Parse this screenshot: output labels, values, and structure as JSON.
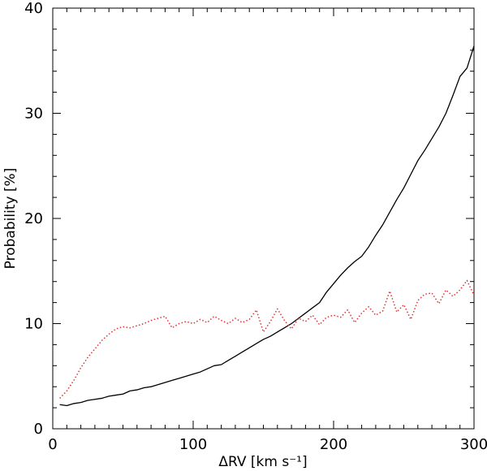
{
  "chart_data": {
    "type": "line",
    "title": "",
    "xlabel": "ΔRV [km s⁻¹]",
    "ylabel": "Probability [%]",
    "xlim": [
      0,
      300
    ],
    "ylim": [
      0,
      40
    ],
    "xticks": [
      "0",
      "100",
      "200",
      "300"
    ],
    "yticks": [
      "0",
      "10",
      "20",
      "30",
      "40"
    ],
    "grid": false,
    "legend": "none",
    "series": [
      {
        "color": "#000000",
        "style": "solid",
        "x": [
          5,
          10,
          15,
          20,
          25,
          30,
          35,
          40,
          45,
          50,
          55,
          60,
          65,
          70,
          75,
          80,
          85,
          90,
          95,
          100,
          105,
          110,
          115,
          120,
          125,
          130,
          135,
          140,
          145,
          150,
          155,
          160,
          165,
          170,
          175,
          180,
          185,
          190,
          195,
          200,
          205,
          210,
          215,
          220,
          225,
          230,
          235,
          240,
          245,
          250,
          255,
          260,
          265,
          270,
          275,
          280,
          285,
          290,
          295,
          300
        ],
        "values": [
          2.3,
          2.2,
          2.4,
          2.5,
          2.7,
          2.8,
          2.9,
          3.1,
          3.2,
          3.3,
          3.6,
          3.7,
          3.9,
          4.0,
          4.2,
          4.4,
          4.6,
          4.8,
          5.0,
          5.2,
          5.4,
          5.7,
          6.0,
          6.1,
          6.5,
          6.9,
          7.3,
          7.7,
          8.1,
          8.5,
          8.8,
          9.2,
          9.6,
          10.0,
          10.5,
          11.0,
          11.5,
          12.0,
          13.0,
          13.8,
          14.6,
          15.3,
          15.9,
          16.4,
          17.3,
          18.4,
          19.4,
          20.6,
          21.8,
          22.9,
          24.2,
          25.5,
          26.5,
          27.6,
          28.7,
          30.0,
          31.7,
          33.5,
          34.3,
          36.4
        ]
      },
      {
        "color": "#e03030",
        "style": "dotted",
        "x": [
          5,
          10,
          15,
          20,
          25,
          30,
          35,
          40,
          45,
          50,
          55,
          60,
          65,
          70,
          75,
          80,
          85,
          90,
          95,
          100,
          105,
          110,
          115,
          120,
          125,
          130,
          135,
          140,
          145,
          150,
          155,
          160,
          165,
          170,
          175,
          180,
          185,
          190,
          195,
          200,
          205,
          210,
          215,
          220,
          225,
          230,
          235,
          240,
          245,
          250,
          255,
          260,
          265,
          270,
          275,
          280,
          285,
          290,
          295,
          300
        ],
        "values": [
          2.9,
          3.6,
          4.6,
          5.8,
          6.8,
          7.6,
          8.4,
          9.0,
          9.5,
          9.7,
          9.6,
          9.8,
          10.0,
          10.3,
          10.5,
          10.7,
          9.6,
          10.0,
          10.2,
          10.0,
          10.4,
          10.1,
          10.7,
          10.3,
          10.0,
          10.5,
          10.1,
          10.4,
          11.3,
          9.2,
          10.2,
          11.4,
          10.3,
          9.5,
          10.5,
          10.2,
          10.8,
          9.9,
          10.6,
          10.8,
          10.6,
          11.3,
          10.1,
          11.0,
          11.6,
          10.8,
          11.2,
          13.1,
          11.1,
          11.8,
          10.4,
          12.2,
          12.8,
          12.9,
          11.9,
          13.2,
          12.6,
          13.2,
          14.1,
          12.7
        ]
      }
    ]
  }
}
